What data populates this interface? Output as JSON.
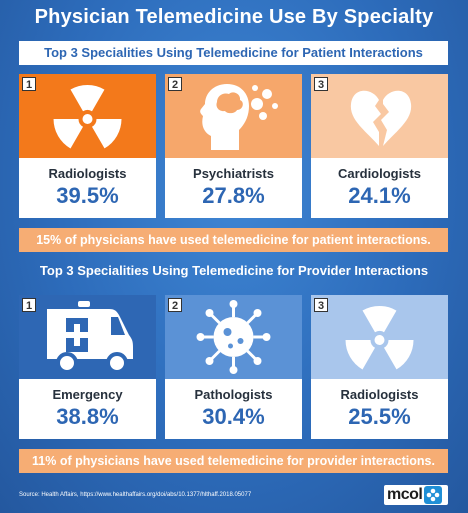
{
  "title": "Physician Telemedicine Use By Specialty",
  "patient_section": {
    "subtitle": "Top 3 Specialities Using Telemedicine for Patient Interactions",
    "cards": [
      {
        "rank": "1",
        "label": "Radiologists",
        "value": "39.5%",
        "icon": "radiation-icon",
        "color": "#f3791b"
      },
      {
        "rank": "2",
        "label": "Psychiatrists",
        "value": "27.8%",
        "icon": "head-brain-icon",
        "color": "#f6a76b"
      },
      {
        "rank": "3",
        "label": "Cardiologists",
        "value": "24.1%",
        "icon": "broken-heart-icon",
        "color": "#f9c8a2"
      }
    ],
    "banner": "15% of physicians have used telemedicine for patient interactions."
  },
  "provider_section": {
    "subtitle": "Top 3 Specialities Using Telemedicine for Provider Interactions",
    "cards": [
      {
        "rank": "1",
        "label": "Emergency",
        "value": "38.8%",
        "icon": "ambulance-icon",
        "color": "#2e67b4"
      },
      {
        "rank": "2",
        "label": "Pathologists",
        "value": "30.4%",
        "icon": "virus-icon",
        "color": "#5b92d6"
      },
      {
        "rank": "3",
        "label": "Radiologists",
        "value": "25.5%",
        "icon": "radiation-icon",
        "color": "#a9c6ec"
      }
    ],
    "banner": "11% of physicians have used telemedicine for provider interactions."
  },
  "source": "Source:   Health Affairs, https://www.healthaffairs.org/doi/abs/10.1377/hlthaff.2018.05077",
  "logo": {
    "text": "mcol",
    "icon": "mcol-logo-icon"
  },
  "colors": {
    "background": "#2e6fbe",
    "accent_blue": "#2d66b3",
    "banner_orange": "#f6ad74"
  }
}
